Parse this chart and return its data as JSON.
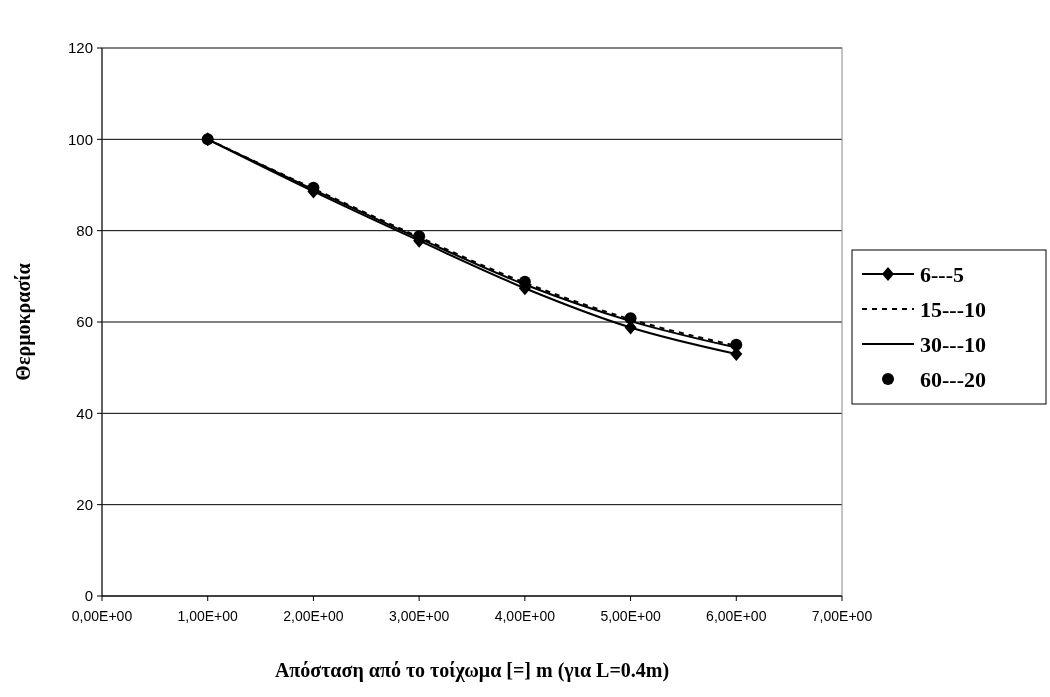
{
  "chart_data": {
    "type": "line",
    "xlabel": "Απόσταση από το τοίχωμα [=] m (για L=0.4m)",
    "ylabel": "Θερμοκρασία",
    "categories": [
      "0,00E+00",
      "1,00E+00",
      "2,00E+00",
      "3,00E+00",
      "4,00E+00",
      "5,00E+00",
      "6,00E+00",
      "7,00E+00"
    ],
    "ylim": [
      0,
      120
    ],
    "yticks": [
      0,
      20,
      40,
      60,
      80,
      100,
      120
    ],
    "grid": "y",
    "legend": "right",
    "series": [
      {
        "name": "6---5",
        "color": "#000000",
        "values": [
          null,
          100,
          88.6,
          77.8,
          67.4,
          58.8,
          53,
          null
        ],
        "marker": "diamond",
        "line_style": "solid"
      },
      {
        "name": "15---10",
        "color": "#000000",
        "values": [
          null,
          100,
          89.2,
          78.6,
          68.6,
          60.6,
          54.8,
          null
        ],
        "marker": "none",
        "line_style": "dashed"
      },
      {
        "name": "30---10",
        "color": "#000000",
        "values": [
          null,
          100,
          89,
          78.3,
          68.2,
          60.2,
          54.4,
          null
        ],
        "marker": "none",
        "line_style": "solid"
      },
      {
        "name": "60---20",
        "color": "#000000",
        "values": [
          null,
          100,
          89.4,
          78.8,
          68.8,
          60.8,
          55,
          null
        ],
        "type": "scatter",
        "marker": "circle"
      }
    ]
  }
}
